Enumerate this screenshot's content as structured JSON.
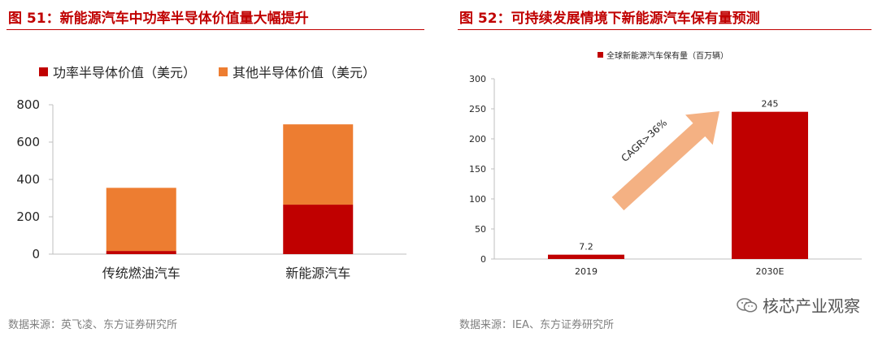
{
  "colors": {
    "title": "#c00000",
    "power": "#c00000",
    "other": "#ed7d31",
    "arrow": "#f4b183",
    "axis": "#bfbfbf",
    "text": "#262626",
    "source": "#7f7f7f"
  },
  "left": {
    "title": "图 51：新能源汽车中功率半导体价值量大幅提升",
    "source": "数据来源：英飞凌、东方证券研究所",
    "chart_data": {
      "type": "bar",
      "stacked": true,
      "categories": [
        "传统燃油汽车",
        "新能源汽车"
      ],
      "series": [
        {
          "name": "功率半导体价值（美元）",
          "color": "#c00000",
          "values": [
            17,
            265
          ]
        },
        {
          "name": "其他半导体价值（美元）",
          "color": "#ed7d31",
          "values": [
            338,
            430
          ]
        }
      ],
      "yticks": [
        "0",
        "200",
        "400",
        "600",
        "800"
      ],
      "ylim": [
        0,
        800
      ],
      "grid": false,
      "legend": "top"
    }
  },
  "right": {
    "title": "图 52：可持续发展情境下新能源汽车保有量预测",
    "source": "数据来源：IEA、东方证券研究所",
    "chart_data": {
      "type": "bar",
      "categories": [
        "2019",
        "2030E"
      ],
      "series": [
        {
          "name": "全球新能源汽车保有量（百万辆）",
          "color": "#c00000",
          "values": [
            7.2,
            245
          ]
        }
      ],
      "data_labels": [
        "7.2",
        "245"
      ],
      "yticks": [
        "0",
        "50",
        "100",
        "150",
        "200",
        "250",
        "300"
      ],
      "ylim": [
        0,
        300
      ],
      "grid": false,
      "legend": "top",
      "annotation": "CAGR>36%"
    }
  },
  "watermark": {
    "text": "核芯产业观察",
    "icon": "wechat-icon"
  }
}
